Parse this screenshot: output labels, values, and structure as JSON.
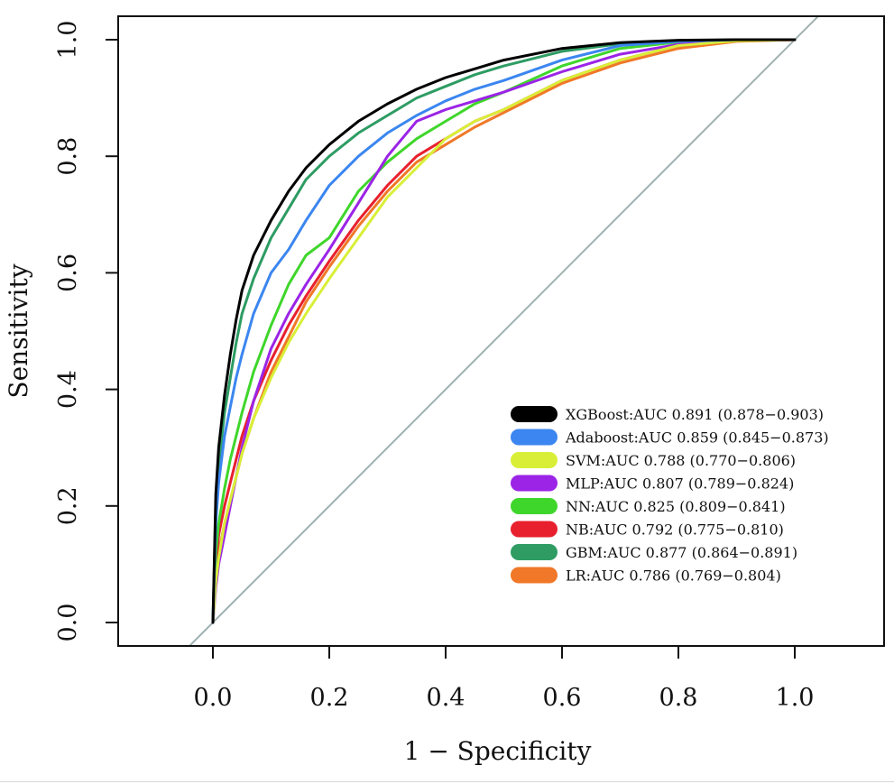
{
  "chart_data": {
    "type": "line",
    "title": "",
    "xlabel": "1 − Specificity",
    "ylabel": "Sensitivity",
    "xlim": [
      -0.16,
      1.17
    ],
    "ylim": [
      -0.04,
      1.04
    ],
    "xticks": [
      0.0,
      0.2,
      0.4,
      0.6,
      0.8,
      1.0
    ],
    "yticks": [
      0.0,
      0.2,
      0.4,
      0.6,
      0.8,
      1.0
    ],
    "xtick_labels": [
      "0.0",
      "0.2",
      "0.4",
      "0.6",
      "0.8",
      "1.0"
    ],
    "ytick_labels": [
      "0.0",
      "0.2",
      "0.4",
      "0.6",
      "0.8",
      "1.0"
    ],
    "grid": false,
    "legend_position": "bottom-right",
    "reference_line": {
      "from": [
        0,
        0
      ],
      "to": [
        1,
        1
      ],
      "color": "#9fb1b1"
    },
    "series": [
      {
        "name": "XGBoost:AUC 0.891 (0.878−0.903)",
        "color": "#000000",
        "x": [
          0,
          0.005,
          0.01,
          0.02,
          0.03,
          0.04,
          0.05,
          0.07,
          0.1,
          0.13,
          0.16,
          0.2,
          0.25,
          0.3,
          0.35,
          0.4,
          0.45,
          0.5,
          0.6,
          0.7,
          0.8,
          0.9,
          1.0
        ],
        "y": [
          0,
          0.22,
          0.3,
          0.39,
          0.46,
          0.52,
          0.57,
          0.63,
          0.69,
          0.74,
          0.78,
          0.82,
          0.86,
          0.89,
          0.915,
          0.935,
          0.95,
          0.965,
          0.985,
          0.995,
          0.999,
          1.0,
          1.0
        ]
      },
      {
        "name": "Adaboost:AUC 0.859 (0.845−0.873)",
        "color": "#3b86f0",
        "x": [
          0,
          0.005,
          0.01,
          0.02,
          0.03,
          0.04,
          0.05,
          0.07,
          0.1,
          0.13,
          0.16,
          0.2,
          0.25,
          0.3,
          0.35,
          0.4,
          0.45,
          0.5,
          0.6,
          0.7,
          0.8,
          0.9,
          1.0
        ],
        "y": [
          0,
          0.17,
          0.24,
          0.32,
          0.37,
          0.42,
          0.46,
          0.53,
          0.6,
          0.64,
          0.69,
          0.75,
          0.8,
          0.84,
          0.87,
          0.895,
          0.915,
          0.93,
          0.965,
          0.99,
          0.997,
          1.0,
          1.0
        ]
      },
      {
        "name": "SVM:AUC 0.788 (0.770−0.806)",
        "color": "#d9ef37",
        "x": [
          0,
          0.005,
          0.01,
          0.02,
          0.03,
          0.04,
          0.05,
          0.07,
          0.1,
          0.13,
          0.16,
          0.2,
          0.25,
          0.3,
          0.35,
          0.4,
          0.45,
          0.5,
          0.6,
          0.7,
          0.8,
          0.9,
          1.0
        ],
        "y": [
          0,
          0.07,
          0.11,
          0.17,
          0.21,
          0.25,
          0.29,
          0.35,
          0.42,
          0.48,
          0.53,
          0.59,
          0.66,
          0.73,
          0.78,
          0.83,
          0.86,
          0.88,
          0.93,
          0.965,
          0.99,
          0.998,
          1.0
        ]
      },
      {
        "name": "MLP:AUC 0.807 (0.789−0.824)",
        "color": "#9b24e6",
        "x": [
          0,
          0.005,
          0.01,
          0.02,
          0.03,
          0.04,
          0.05,
          0.07,
          0.1,
          0.13,
          0.16,
          0.2,
          0.25,
          0.3,
          0.35,
          0.4,
          0.45,
          0.5,
          0.6,
          0.7,
          0.8,
          0.9,
          1.0
        ],
        "y": [
          0,
          0.06,
          0.1,
          0.15,
          0.2,
          0.25,
          0.3,
          0.38,
          0.47,
          0.53,
          0.58,
          0.64,
          0.72,
          0.8,
          0.86,
          0.88,
          0.895,
          0.91,
          0.945,
          0.975,
          0.992,
          0.999,
          1.0
        ]
      },
      {
        "name": "NN:AUC 0.825 (0.809−0.841)",
        "color": "#3fd62b",
        "x": [
          0,
          0.005,
          0.01,
          0.02,
          0.03,
          0.04,
          0.05,
          0.07,
          0.1,
          0.13,
          0.16,
          0.2,
          0.25,
          0.3,
          0.35,
          0.4,
          0.45,
          0.5,
          0.6,
          0.7,
          0.8,
          0.9,
          1.0
        ],
        "y": [
          0,
          0.12,
          0.17,
          0.23,
          0.28,
          0.32,
          0.36,
          0.43,
          0.51,
          0.58,
          0.63,
          0.66,
          0.74,
          0.79,
          0.83,
          0.86,
          0.89,
          0.91,
          0.955,
          0.985,
          0.996,
          1.0,
          1.0
        ]
      },
      {
        "name": "NB:AUC 0.792 (0.775−0.810)",
        "color": "#e8202e",
        "x": [
          0,
          0.005,
          0.01,
          0.02,
          0.03,
          0.04,
          0.05,
          0.07,
          0.1,
          0.13,
          0.16,
          0.2,
          0.25,
          0.3,
          0.35,
          0.4,
          0.45,
          0.5,
          0.6,
          0.7,
          0.8,
          0.9,
          1.0
        ],
        "y": [
          0,
          0.1,
          0.15,
          0.2,
          0.24,
          0.28,
          0.32,
          0.38,
          0.45,
          0.51,
          0.56,
          0.62,
          0.69,
          0.75,
          0.8,
          0.83,
          0.86,
          0.88,
          0.93,
          0.965,
          0.99,
          0.998,
          1.0
        ]
      },
      {
        "name": "GBM:AUC 0.877 (0.864−0.891)",
        "color": "#2e9c63",
        "x": [
          0,
          0.005,
          0.01,
          0.02,
          0.03,
          0.04,
          0.05,
          0.07,
          0.1,
          0.13,
          0.16,
          0.2,
          0.25,
          0.3,
          0.35,
          0.4,
          0.45,
          0.5,
          0.6,
          0.7,
          0.8,
          0.9,
          1.0
        ],
        "y": [
          0,
          0.2,
          0.27,
          0.36,
          0.42,
          0.48,
          0.53,
          0.59,
          0.66,
          0.71,
          0.76,
          0.8,
          0.84,
          0.87,
          0.9,
          0.92,
          0.94,
          0.955,
          0.98,
          0.993,
          0.998,
          1.0,
          1.0
        ]
      },
      {
        "name": "LR:AUC 0.786 (0.769−0.804)",
        "color": "#f07828",
        "x": [
          0,
          0.005,
          0.01,
          0.02,
          0.03,
          0.04,
          0.05,
          0.07,
          0.1,
          0.13,
          0.16,
          0.2,
          0.25,
          0.3,
          0.35,
          0.4,
          0.45,
          0.5,
          0.6,
          0.7,
          0.8,
          0.9,
          1.0
        ],
        "y": [
          0,
          0.08,
          0.12,
          0.17,
          0.21,
          0.25,
          0.29,
          0.35,
          0.43,
          0.49,
          0.55,
          0.61,
          0.68,
          0.74,
          0.79,
          0.82,
          0.85,
          0.875,
          0.925,
          0.96,
          0.985,
          0.997,
          1.0
        ]
      }
    ]
  }
}
